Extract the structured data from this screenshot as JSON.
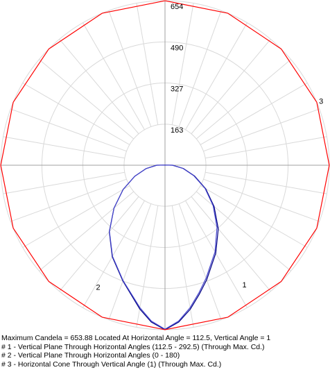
{
  "chart_data": {
    "type": "polar",
    "title": "",
    "ring_labels": [
      "163",
      "327",
      "490",
      "654"
    ],
    "ring_values": [
      163,
      327,
      490,
      654
    ],
    "rmax": 654,
    "angular_grid_step_deg": 10,
    "grid": true,
    "series": [
      {
        "label": "1",
        "description": "Vertical Plane Through Horizontal Angles (112.5 - 292.5) (Through Max. Cd.)",
        "color": "#000080",
        "angle_unit": "deg_from_nadir_clockwise",
        "points": [
          [
            -180,
            0
          ],
          [
            -150,
            0
          ],
          [
            -120,
            0
          ],
          [
            -105,
            2
          ],
          [
            -90,
            30
          ],
          [
            -80,
            74
          ],
          [
            -70,
            125
          ],
          [
            -60,
            187
          ],
          [
            -50,
            255
          ],
          [
            -40,
            330
          ],
          [
            -30,
            404
          ],
          [
            -20,
            485
          ],
          [
            -15,
            530
          ],
          [
            -10,
            581
          ],
          [
            -5,
            626
          ],
          [
            0,
            654
          ],
          [
            5,
            626
          ],
          [
            10,
            580
          ],
          [
            20,
            490
          ],
          [
            30,
            420
          ],
          [
            40,
            345
          ],
          [
            50,
            265
          ],
          [
            60,
            192
          ],
          [
            70,
            128
          ],
          [
            80,
            76
          ],
          [
            90,
            33
          ],
          [
            105,
            2
          ],
          [
            120,
            0
          ],
          [
            150,
            0
          ],
          [
            180,
            0
          ]
        ]
      },
      {
        "label": "2",
        "description": "Vertical Plane Through Horizontal Angles (0 - 180)",
        "color": "#4444cc",
        "angle_unit": "deg_from_nadir_clockwise",
        "points": [
          [
            -180,
            0
          ],
          [
            -150,
            0
          ],
          [
            -120,
            0
          ],
          [
            -105,
            2
          ],
          [
            -90,
            30
          ],
          [
            -80,
            72
          ],
          [
            -70,
            122
          ],
          [
            -60,
            184
          ],
          [
            -50,
            250
          ],
          [
            -40,
            322
          ],
          [
            -30,
            398
          ],
          [
            -20,
            478
          ],
          [
            -15,
            524
          ],
          [
            -10,
            575
          ],
          [
            -5,
            622
          ],
          [
            0,
            652
          ],
          [
            5,
            622
          ],
          [
            10,
            575
          ],
          [
            20,
            488
          ],
          [
            30,
            418
          ],
          [
            40,
            344
          ],
          [
            50,
            265
          ],
          [
            60,
            192
          ],
          [
            70,
            128
          ],
          [
            80,
            76
          ],
          [
            90,
            33
          ],
          [
            105,
            2
          ],
          [
            120,
            0
          ],
          [
            150,
            0
          ],
          [
            180,
            0
          ]
        ]
      },
      {
        "label": "3",
        "description": "Horizontal Cone Through Vertical Angle (1) (Through Max. Cd.)",
        "color": "#ff0000",
        "angle_unit": "deg_horizontal",
        "points": [
          [
            0,
            653.88
          ],
          [
            22.5,
            653.88
          ],
          [
            45,
            653.88
          ],
          [
            67.5,
            653.88
          ],
          [
            90,
            653.88
          ],
          [
            112.5,
            653.88
          ],
          [
            135,
            653.88
          ],
          [
            157.5,
            653.88
          ],
          [
            180,
            653.88
          ],
          [
            202.5,
            653.88
          ],
          [
            225,
            653.88
          ],
          [
            247.5,
            653.88
          ],
          [
            270,
            653.88
          ],
          [
            292.5,
            653.88
          ],
          [
            315,
            653.88
          ],
          [
            337.5,
            653.88
          ],
          [
            360,
            653.88
          ]
        ]
      }
    ]
  },
  "notes": {
    "max_line": "Maximum Candela = 653.88   Located At Horizontal Angle = 112.5, Vertical Angle = 1",
    "legend1": "# 1 - Vertical Plane Through Horizontal Angles (112.5 - 292.5) (Through Max. Cd.)",
    "legend2": "# 2 - Vertical Plane Through Horizontal Angles (0 - 180)",
    "legend3": "# 3 - Horizontal Cone Through Vertical Angle (1) (Through Max. Cd.)"
  }
}
